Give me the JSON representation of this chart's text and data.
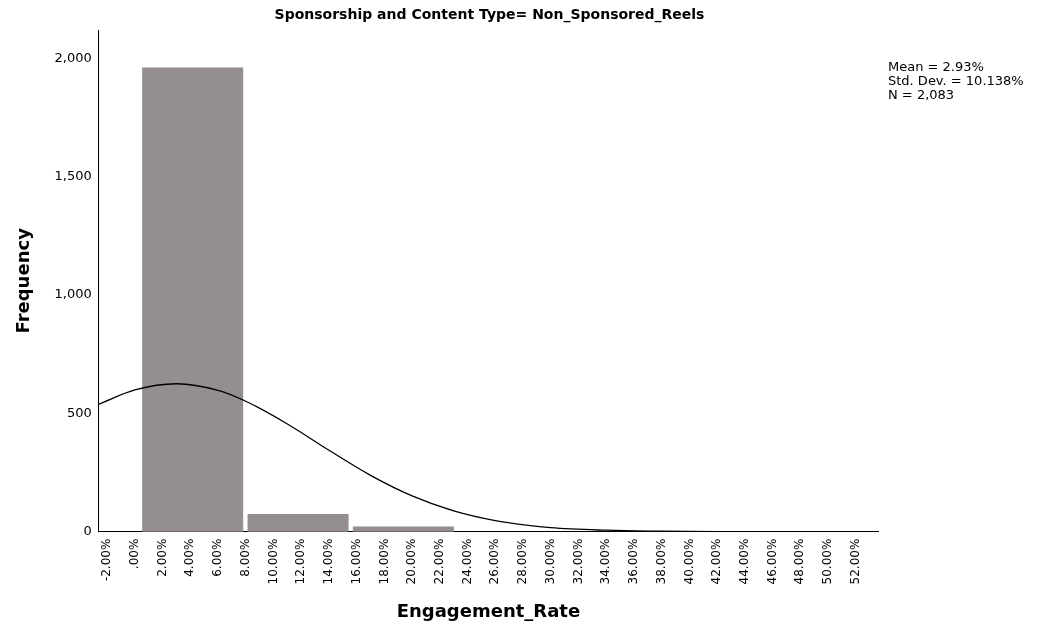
{
  "chart_data": {
    "type": "histogram",
    "title": "Sponsorship and Content Type= Non_Sponsored_Reels",
    "xlabel": "Engagement_Rate",
    "ylabel": "Frequency",
    "bins": [
      0.37,
      7.97,
      15.57,
      23.17,
      30.77,
      38.37,
      45.97,
      53.57
    ],
    "values": [
      1960,
      73,
      20,
      null,
      null,
      null,
      null
    ],
    "color": "#948f8e",
    "series": [
      {
        "type": "line",
        "color": "#000000",
        "x": [
          -2.6,
          0,
          3,
          6,
          8,
          11,
          14,
          17,
          20,
          23,
          26,
          30,
          34,
          38,
          42,
          46,
          50,
          53.6
        ],
        "values": [
          539,
          599,
          625,
          597,
          551,
          455,
          344,
          238,
          151,
          88,
          47,
          17,
          6,
          2,
          0,
          0,
          0,
          0
        ]
      }
    ],
    "xlim": [
      -2.6,
      53.6
    ],
    "xticks": [
      {
        "value": -2,
        "label": "-2.00%"
      },
      {
        "value": 0,
        "label": ".00%"
      },
      {
        "value": 2,
        "label": "2.00%"
      },
      {
        "value": 4,
        "label": "4.00%"
      },
      {
        "value": 6,
        "label": "6.00%"
      },
      {
        "value": 8,
        "label": "8.00%"
      },
      {
        "value": 10,
        "label": "10.00%"
      },
      {
        "value": 12,
        "label": "12.00%"
      },
      {
        "value": 14,
        "label": "14.00%"
      },
      {
        "value": 16,
        "label": "16.00%"
      },
      {
        "value": 18,
        "label": "18.00%"
      },
      {
        "value": 20,
        "label": "20.00%"
      },
      {
        "value": 22,
        "label": "22.00%"
      },
      {
        "value": 24,
        "label": "24.00%"
      },
      {
        "value": 26,
        "label": "26.00%"
      },
      {
        "value": 28,
        "label": "28.00%"
      },
      {
        "value": 30,
        "label": "30.00%"
      },
      {
        "value": 32,
        "label": "32.00%"
      },
      {
        "value": 34,
        "label": "34.00%"
      },
      {
        "value": 36,
        "label": "36.00%"
      },
      {
        "value": 38,
        "label": "38.00%"
      },
      {
        "value": 40,
        "label": "40.00%"
      },
      {
        "value": 42,
        "label": "42.00%"
      },
      {
        "value": 44,
        "label": "44.00%"
      },
      {
        "value": 46,
        "label": "46.00%"
      },
      {
        "value": 48,
        "label": "48.00%"
      },
      {
        "value": 50,
        "label": "50.00%"
      },
      {
        "value": 52,
        "label": "52.00%"
      }
    ],
    "ylim": [
      0,
      2120
    ],
    "yticks": [
      0,
      500,
      {
        "value": 1000,
        "label": "1,000"
      },
      {
        "value": 1500,
        "label": "1,500"
      },
      {
        "value": 2000,
        "label": "2,000"
      }
    ],
    "annotations": [
      "Mean = 2.93%",
      "Std. Dev. = 10.138%",
      "N = 2,083"
    ]
  }
}
